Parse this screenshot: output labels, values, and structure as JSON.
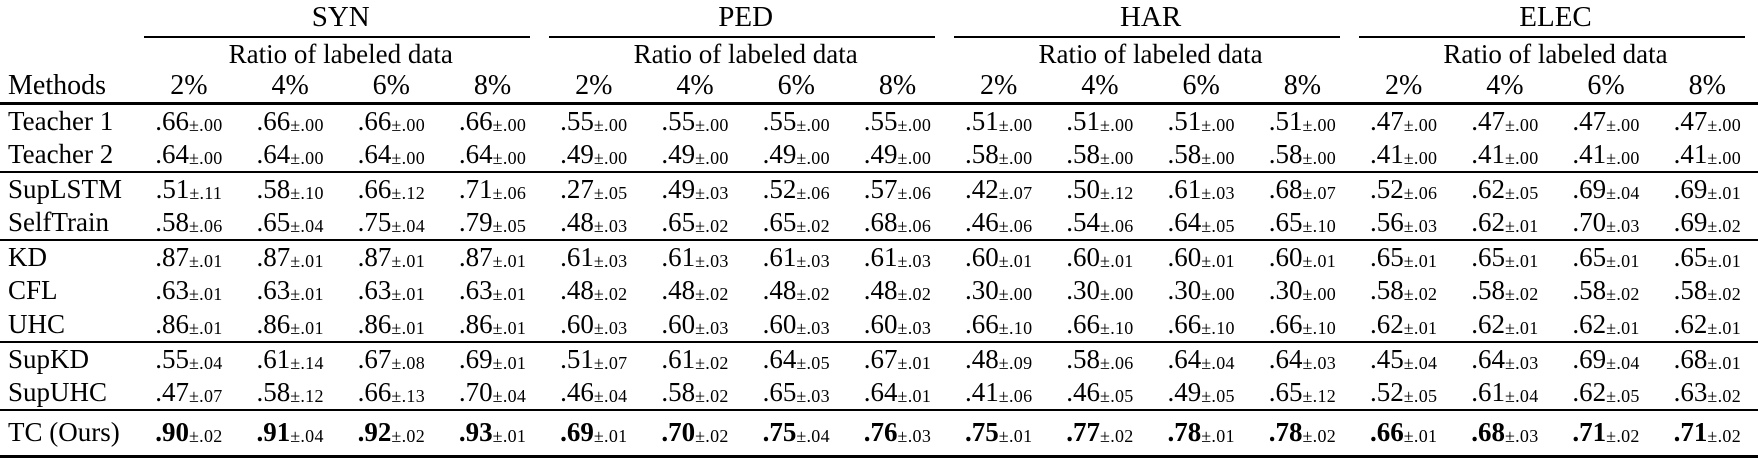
{
  "colors": {
    "text": "#000000",
    "background": "#ffffff",
    "rule": "#000000"
  },
  "table": {
    "methods_header": "Methods",
    "ratio_subheader": "Ratio of labeled data",
    "groups": [
      {
        "name": "SYN",
        "ratios": [
          "2%",
          "4%",
          "6%",
          "8%"
        ]
      },
      {
        "name": "PED",
        "ratios": [
          "2%",
          "4%",
          "6%",
          "8%"
        ]
      },
      {
        "name": "HAR",
        "ratios": [
          "2%",
          "4%",
          "6%",
          "8%"
        ]
      },
      {
        "name": "ELEC",
        "ratios": [
          "2%",
          "4%",
          "6%",
          "8%"
        ]
      }
    ],
    "row_groups": [
      {
        "rows": [
          {
            "method": "Teacher 1",
            "bold": false,
            "cells": [
              ".66±.00",
              ".66±.00",
              ".66±.00",
              ".66±.00",
              ".55±.00",
              ".55±.00",
              ".55±.00",
              ".55±.00",
              ".51±.00",
              ".51±.00",
              ".51±.00",
              ".51±.00",
              ".47±.00",
              ".47±.00",
              ".47±.00",
              ".47±.00"
            ]
          },
          {
            "method": "Teacher 2",
            "bold": false,
            "cells": [
              ".64±.00",
              ".64±.00",
              ".64±.00",
              ".64±.00",
              ".49±.00",
              ".49±.00",
              ".49±.00",
              ".49±.00",
              ".58±.00",
              ".58±.00",
              ".58±.00",
              ".58±.00",
              ".41±.00",
              ".41±.00",
              ".41±.00",
              ".41±.00"
            ]
          }
        ]
      },
      {
        "rows": [
          {
            "method": "SupLSTM",
            "bold": false,
            "cells": [
              ".51±.11",
              ".58±.10",
              ".66±.12",
              ".71±.06",
              ".27±.05",
              ".49±.03",
              ".52±.06",
              ".57±.06",
              ".42±.07",
              ".50±.12",
              ".61±.03",
              ".68±.07",
              ".52±.06",
              ".62±.05",
              ".69±.04",
              ".69±.01"
            ]
          },
          {
            "method": "SelfTrain",
            "bold": false,
            "cells": [
              ".58±.06",
              ".65±.04",
              ".75±.04",
              ".79±.05",
              ".48±.03",
              ".65±.02",
              ".65±.02",
              ".68±.06",
              ".46±.06",
              ".54±.06",
              ".64±.05",
              ".65±.10",
              ".56±.03",
              ".62±.01",
              ".70±.03",
              ".69±.02"
            ]
          }
        ]
      },
      {
        "rows": [
          {
            "method": "KD",
            "bold": false,
            "cells": [
              ".87±.01",
              ".87±.01",
              ".87±.01",
              ".87±.01",
              ".61±.03",
              ".61±.03",
              ".61±.03",
              ".61±.03",
              ".60±.01",
              ".60±.01",
              ".60±.01",
              ".60±.01",
              ".65±.01",
              ".65±.01",
              ".65±.01",
              ".65±.01"
            ]
          },
          {
            "method": "CFL",
            "bold": false,
            "cells": [
              ".63±.01",
              ".63±.01",
              ".63±.01",
              ".63±.01",
              ".48±.02",
              ".48±.02",
              ".48±.02",
              ".48±.02",
              ".30±.00",
              ".30±.00",
              ".30±.00",
              ".30±.00",
              ".58±.02",
              ".58±.02",
              ".58±.02",
              ".58±.02"
            ]
          },
          {
            "method": "UHC",
            "bold": false,
            "cells": [
              ".86±.01",
              ".86±.01",
              ".86±.01",
              ".86±.01",
              ".60±.03",
              ".60±.03",
              ".60±.03",
              ".60±.03",
              ".66±.10",
              ".66±.10",
              ".66±.10",
              ".66±.10",
              ".62±.01",
              ".62±.01",
              ".62±.01",
              ".62±.01"
            ]
          }
        ]
      },
      {
        "rows": [
          {
            "method": "SupKD",
            "bold": false,
            "cells": [
              ".55±.04",
              ".61±.14",
              ".67±.08",
              ".69±.01",
              ".51±.07",
              ".61±.02",
              ".64±.05",
              ".67±.01",
              ".48±.09",
              ".58±.06",
              ".64±.04",
              ".64±.03",
              ".45±.04",
              ".64±.03",
              ".69±.04",
              ".68±.01"
            ]
          },
          {
            "method": "SupUHC",
            "bold": false,
            "cells": [
              ".47±.07",
              ".58±.12",
              ".66±.13",
              ".70±.04",
              ".46±.04",
              ".58±.02",
              ".65±.03",
              ".64±.01",
              ".41±.06",
              ".46±.05",
              ".49±.05",
              ".65±.12",
              ".52±.05",
              ".61±.04",
              ".62±.05",
              ".63±.02"
            ]
          }
        ]
      },
      {
        "rows": [
          {
            "method": "TC (Ours)",
            "bold": true,
            "cells": [
              ".90±.02",
              ".91±.04",
              ".92±.02",
              ".93±.01",
              ".69±.01",
              ".70±.02",
              ".75±.04",
              ".76±.03",
              ".75±.01",
              ".77±.02",
              ".78±.01",
              ".78±.02",
              ".66±.01",
              ".68±.03",
              ".71±.02",
              ".71±.02"
            ]
          }
        ]
      }
    ]
  }
}
